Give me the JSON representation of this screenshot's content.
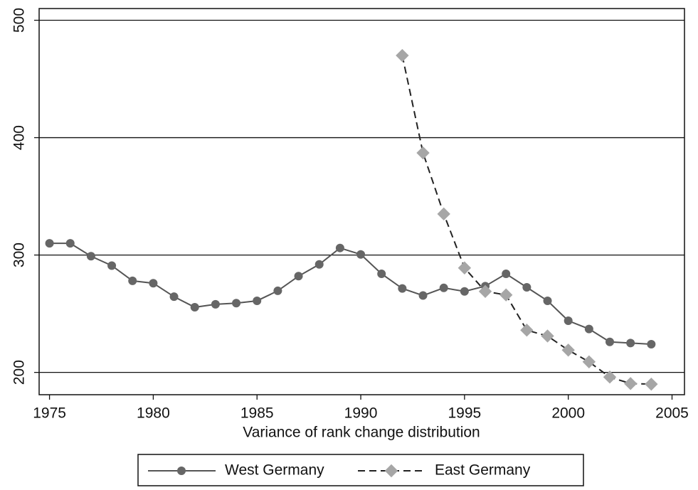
{
  "chart_data": {
    "type": "line",
    "x_label": "Variance of rank change distribution",
    "x": [
      1975,
      1976,
      1977,
      1978,
      1979,
      1980,
      1981,
      1982,
      1983,
      1984,
      1985,
      1986,
      1987,
      1988,
      1989,
      1990,
      1991,
      1992,
      1993,
      1994,
      1995,
      1996,
      1997,
      1998,
      1999,
      2000,
      2001,
      2002,
      2003,
      2004
    ],
    "series": [
      {
        "name": "West Germany",
        "color": "#555555",
        "marker_color": "#666666",
        "dash": false,
        "values": [
          310,
          310,
          299,
          291,
          278,
          276,
          264.5,
          255.5,
          258,
          259,
          261,
          269.5,
          282,
          292,
          306,
          300.5,
          284,
          271.5,
          265.5,
          272,
          269,
          273.5,
          284,
          272.5,
          261,
          244,
          237,
          226,
          225,
          224
        ]
      },
      {
        "name": "East Germany",
        "color": "#222222",
        "marker_color": "#a6a6a6",
        "dash": true,
        "values": [
          null,
          null,
          null,
          null,
          null,
          null,
          null,
          null,
          null,
          null,
          null,
          null,
          null,
          null,
          null,
          null,
          null,
          470,
          387,
          335,
          289,
          269,
          266,
          236,
          231,
          219,
          209,
          196,
          190.5,
          190
        ]
      }
    ],
    "xlim": [
      1974.5,
      2005.6
    ],
    "xticks": [
      1975,
      1980,
      1985,
      1990,
      1995,
      2000,
      2005
    ],
    "ylim": [
      181,
      510
    ],
    "yticks": [
      200,
      300,
      400,
      500
    ],
    "grid": true
  }
}
